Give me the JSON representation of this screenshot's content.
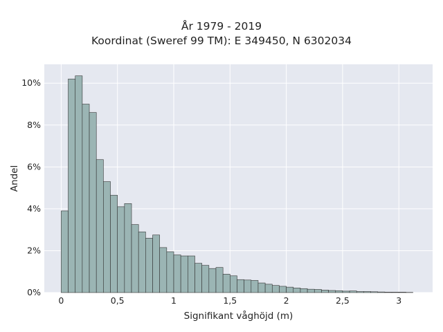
{
  "title": {
    "line1": "År 1979 - 2019",
    "line2": "Koordinat (Sweref 99 TM): E 349450, N 6302034"
  },
  "chart_data": {
    "type": "bar",
    "subtype": "histogram",
    "xlabel": "Signifikant våghöjd (m)",
    "ylabel": "Andel",
    "xlim": [
      -0.15,
      3.3
    ],
    "ylim": [
      0,
      10.9
    ],
    "x_ticks": [
      0,
      0.5,
      1,
      1.5,
      2,
      2.5,
      3
    ],
    "x_tick_labels": [
      "0",
      "0,5",
      "1",
      "1,5",
      "2",
      "2,5",
      "3"
    ],
    "y_ticks": [
      0,
      2,
      4,
      6,
      8,
      10
    ],
    "y_tick_labels": [
      "0%",
      "2%",
      "4%",
      "6%",
      "8%",
      "10%"
    ],
    "bin_start": 0,
    "bin_width": 0.0625,
    "values": [
      3.9,
      10.2,
      10.35,
      9.0,
      8.6,
      6.35,
      5.3,
      4.65,
      4.1,
      4.25,
      3.25,
      2.9,
      2.6,
      2.75,
      2.15,
      1.95,
      1.8,
      1.75,
      1.75,
      1.4,
      1.3,
      1.15,
      1.2,
      0.88,
      0.8,
      0.62,
      0.6,
      0.58,
      0.46,
      0.4,
      0.34,
      0.3,
      0.26,
      0.22,
      0.19,
      0.16,
      0.15,
      0.12,
      0.1,
      0.09,
      0.07,
      0.08,
      0.05,
      0.05,
      0.04,
      0.03,
      0.02,
      0.02,
      0.02,
      0.01
    ],
    "grid": true,
    "legend": "none",
    "colors": {
      "bar_fill": "#9bb5b4",
      "bar_edge": "#333333",
      "plot_bg": "#e5e8f0",
      "grid": "#ffffff"
    }
  }
}
